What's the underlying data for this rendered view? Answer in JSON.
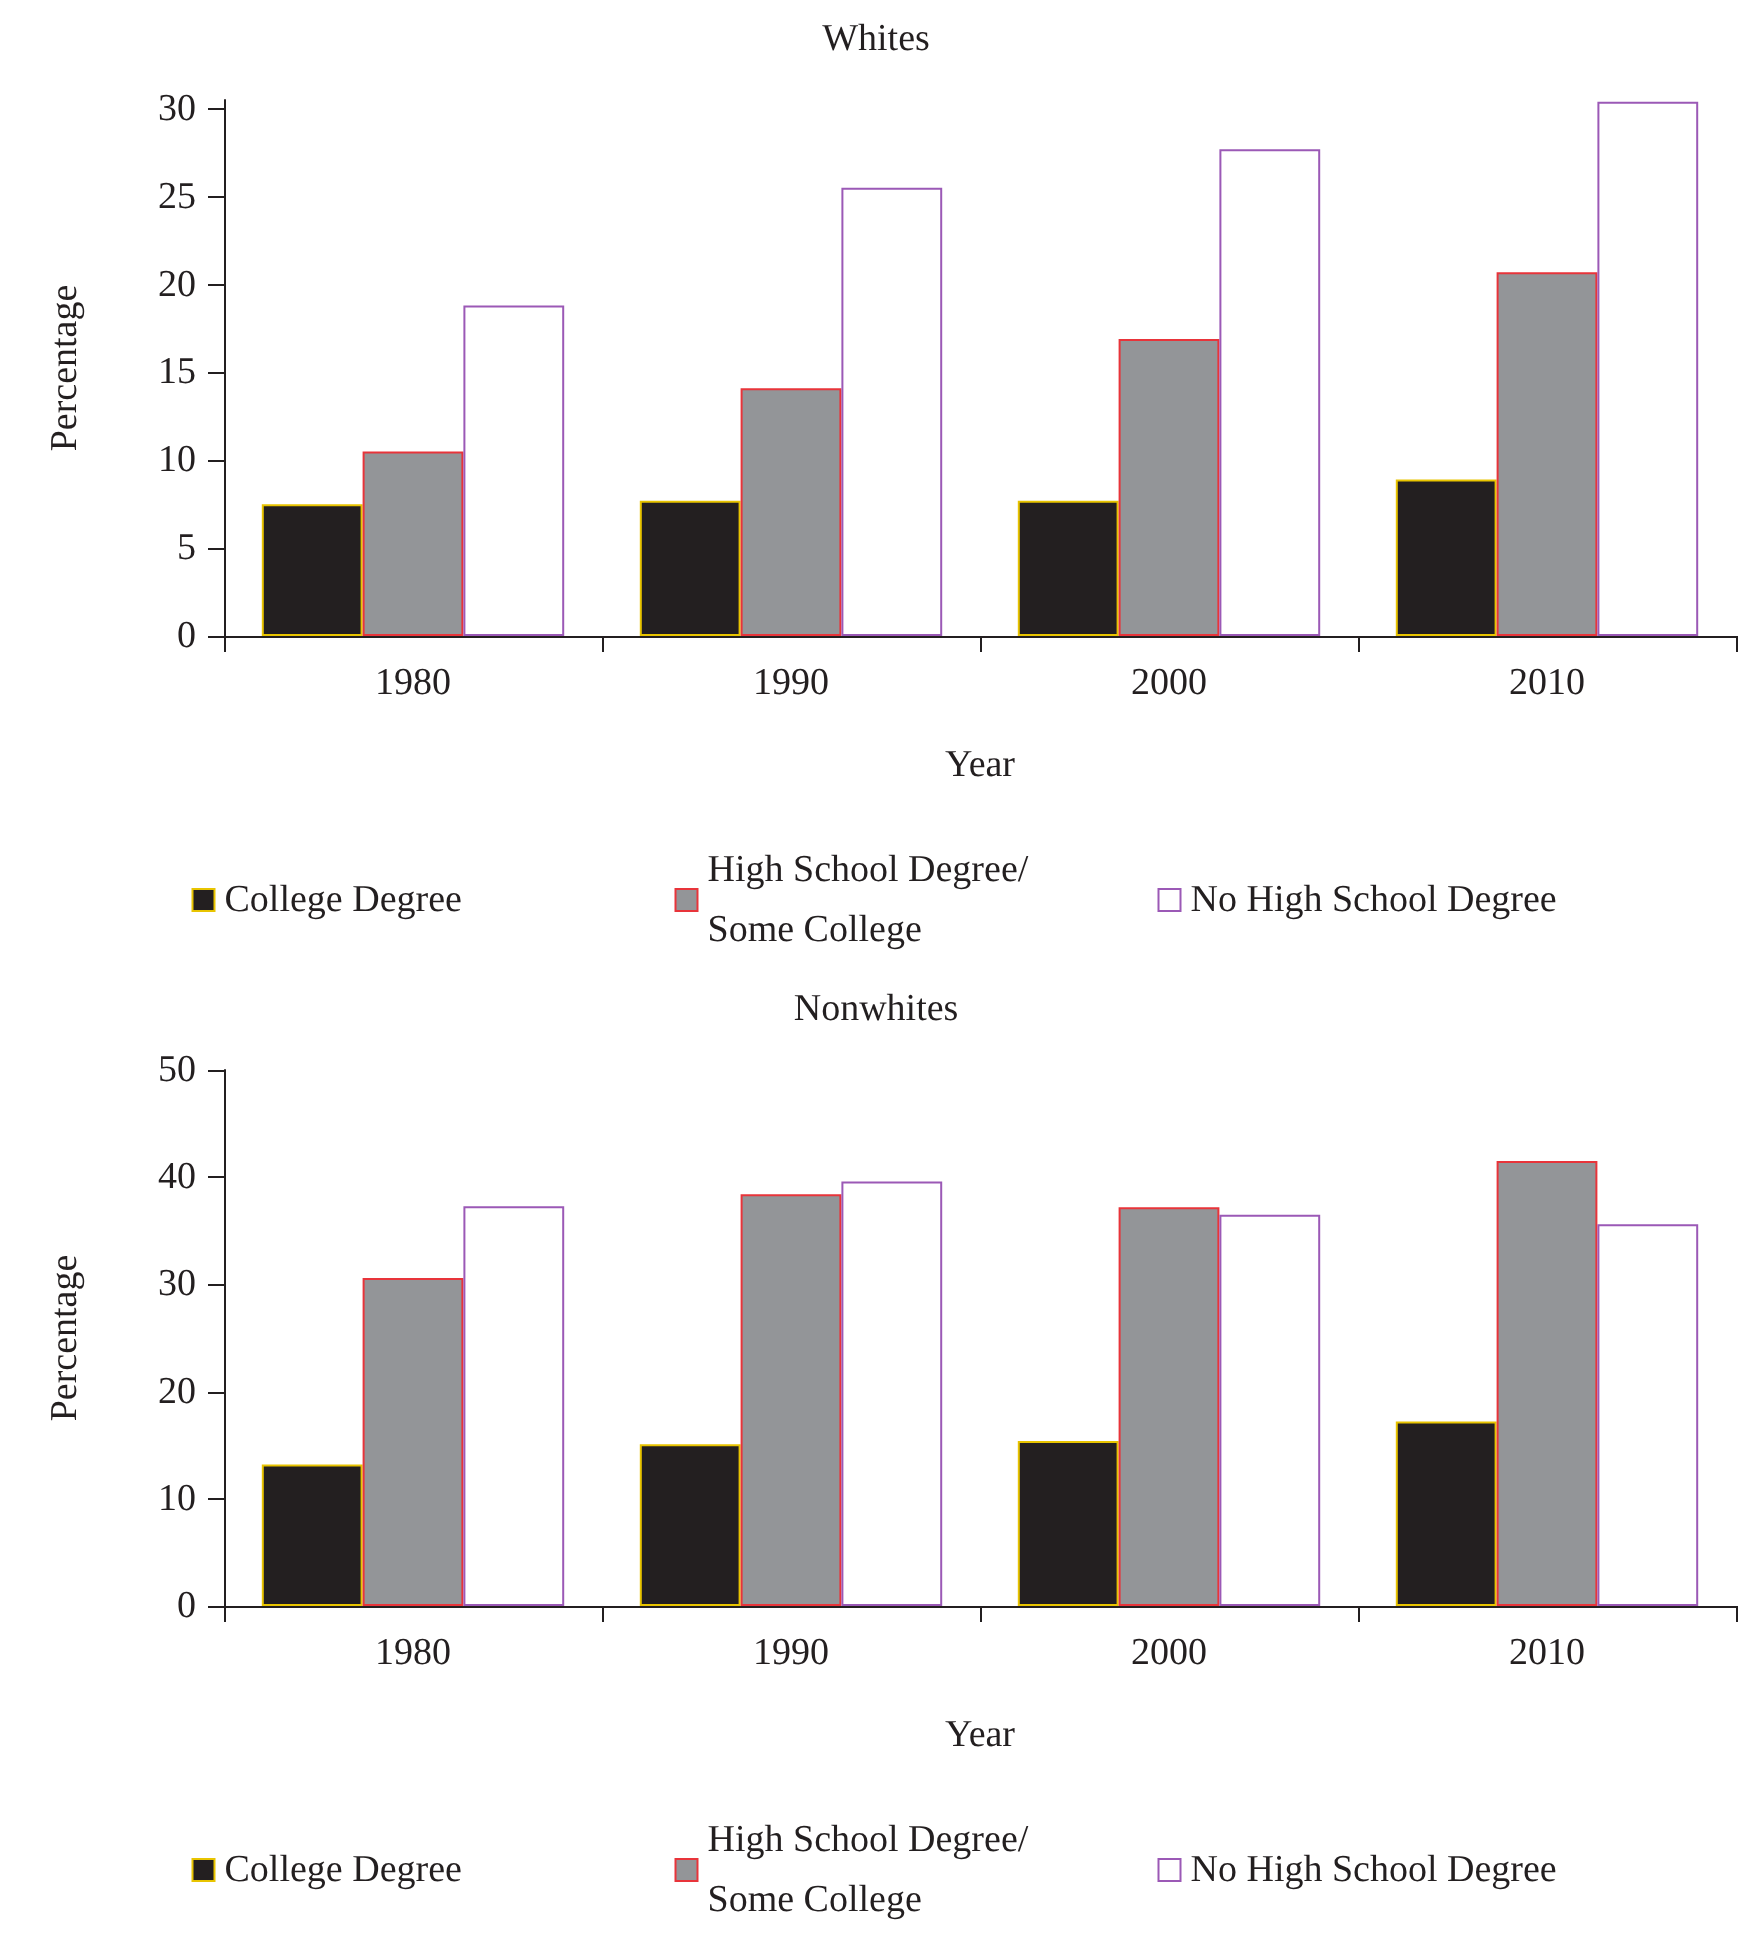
{
  "chart_data": [
    {
      "type": "bar",
      "title": "Whites",
      "xlabel": "Year",
      "ylabel": "Percentage",
      "categories": [
        "1980",
        "1990",
        "2000",
        "2010"
      ],
      "series": [
        {
          "name": "College Degree",
          "color": "#231f20",
          "values": [
            7.5,
            7.7,
            7.7,
            8.9
          ]
        },
        {
          "name": "High School Degree/ Some College",
          "color": "#939598",
          "values": [
            10.5,
            14.1,
            16.9,
            20.7
          ]
        },
        {
          "name": "No High School Degree",
          "color": "#ffffff",
          "values": [
            18.8,
            25.5,
            27.7,
            30.4
          ]
        }
      ],
      "ylim": [
        0,
        30.5
      ],
      "yticks": [
        0,
        5,
        10,
        15,
        20,
        25,
        30
      ],
      "grid": false,
      "legend": "bottom"
    },
    {
      "type": "bar",
      "title": "Nonwhites",
      "xlabel": "Year",
      "ylabel": "Percentage",
      "categories": [
        "1980",
        "1990",
        "2000",
        "2010"
      ],
      "series": [
        {
          "name": "College Degree",
          "color": "#231f20",
          "values": [
            13.2,
            15.1,
            15.4,
            17.2
          ]
        },
        {
          "name": "High School Degree/ Some College",
          "color": "#939598",
          "values": [
            30.6,
            38.4,
            37.2,
            41.5
          ]
        },
        {
          "name": "No High School Degree",
          "color": "#ffffff",
          "values": [
            37.3,
            39.6,
            36.5,
            35.6
          ]
        }
      ],
      "ylim": [
        0,
        50
      ],
      "yticks": [
        0,
        10,
        20,
        30,
        40,
        50
      ],
      "grid": false,
      "legend": "bottom"
    }
  ]
}
